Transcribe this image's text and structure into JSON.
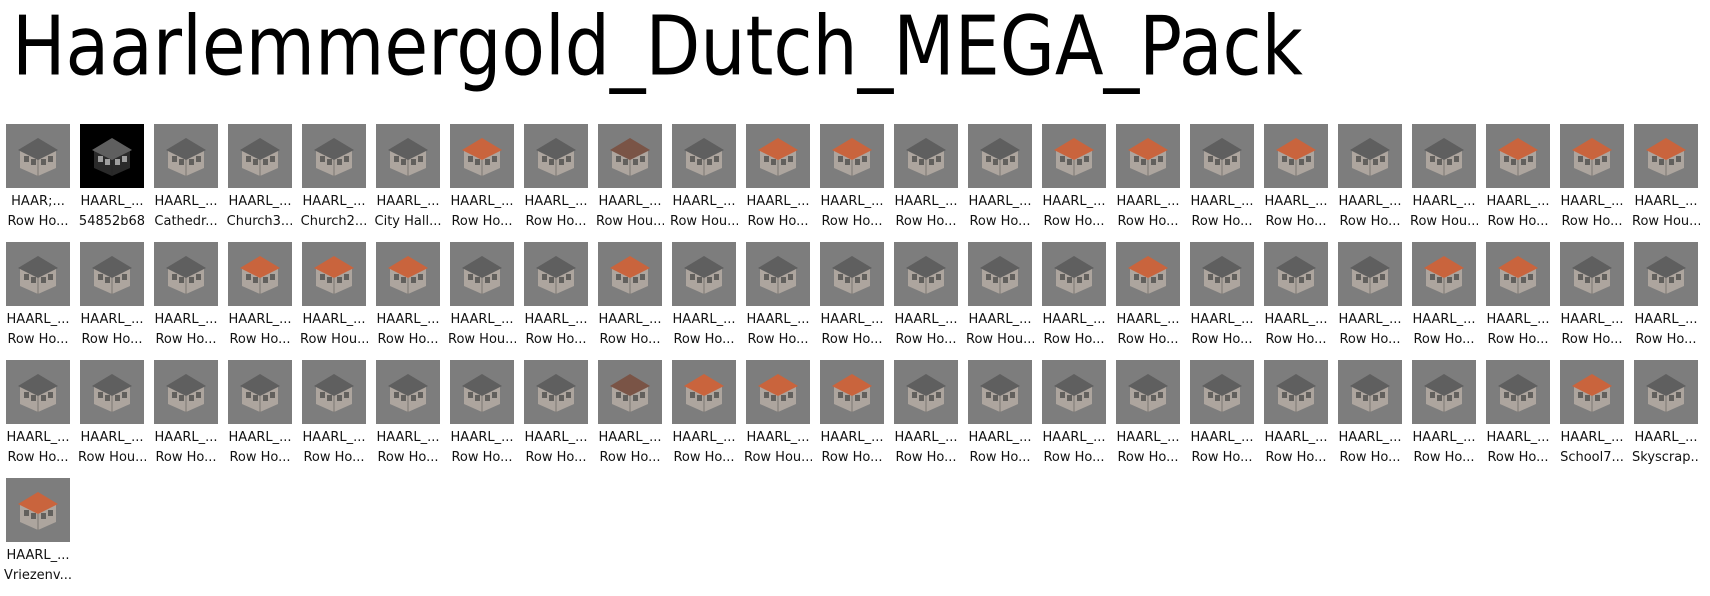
{
  "title": "Haarlemmergold_Dutch_MEGA_Pack",
  "items": [
    {
      "line1": "HAAR;...",
      "line2": "Row Ho...",
      "style": "black0"
    },
    {
      "line1": "HAARL_...",
      "line2": "54852b68",
      "style": "dark"
    },
    {
      "line1": "HAARL_...",
      "line2": "Cathedr...",
      "style": "grey"
    },
    {
      "line1": "HAARL_...",
      "line2": "Church3...",
      "style": "grey"
    },
    {
      "line1": "HAARL_...",
      "line2": "Church2...",
      "style": "grey"
    },
    {
      "line1": "HAARL_...",
      "line2": "City Hall...",
      "style": "grey"
    },
    {
      "line1": "HAARL_...",
      "line2": "Row Ho...",
      "style": "orange"
    },
    {
      "line1": "HAARL_...",
      "line2": "Row Ho...",
      "style": "grey"
    },
    {
      "line1": "HAARL_...",
      "line2": "Row Hou...",
      "style": "brown"
    },
    {
      "line1": "HAARL_...",
      "line2": "Row Hou...",
      "style": "grey"
    },
    {
      "line1": "HAARL_...",
      "line2": "Row Ho...",
      "style": "orange"
    },
    {
      "line1": "HAARL_...",
      "line2": "Row Ho...",
      "style": "orange"
    },
    {
      "line1": "HAARL_...",
      "line2": "Row Ho...",
      "style": "grey"
    },
    {
      "line1": "HAARL_...",
      "line2": "Row Ho...",
      "style": "grey"
    },
    {
      "line1": "HAARL_...",
      "line2": "Row Ho...",
      "style": "orange"
    },
    {
      "line1": "HAARL_...",
      "line2": "Row Ho...",
      "style": "orange"
    },
    {
      "line1": "HAARL_...",
      "line2": "Row Ho...",
      "style": "grey"
    },
    {
      "line1": "HAARL_...",
      "line2": "Row Ho...",
      "style": "orange"
    },
    {
      "line1": "HAARL_...",
      "line2": "Row Ho...",
      "style": "grey"
    },
    {
      "line1": "HAARL_...",
      "line2": "Row Hou...",
      "style": "grey"
    },
    {
      "line1": "HAARL_...",
      "line2": "Row Ho...",
      "style": "orange"
    },
    {
      "line1": "HAARL_...",
      "line2": "Row Ho...",
      "style": "orange"
    },
    {
      "line1": "HAARL_...",
      "line2": "Row Hou...",
      "style": "orange"
    },
    {
      "line1": "HAARL_...",
      "line2": "Row Ho...",
      "style": "grey"
    },
    {
      "line1": "HAARL_...",
      "line2": "Row Ho...",
      "style": "grey"
    },
    {
      "line1": "HAARL_...",
      "line2": "Row Ho...",
      "style": "grey"
    },
    {
      "line1": "HAARL_...",
      "line2": "Row Ho...",
      "style": "orange"
    },
    {
      "line1": "HAARL_...",
      "line2": "Row Hou...",
      "style": "orange"
    },
    {
      "line1": "HAARL_...",
      "line2": "Row Ho...",
      "style": "orange"
    },
    {
      "line1": "HAARL_...",
      "line2": "Row Hou...",
      "style": "grey"
    },
    {
      "line1": "HAARL_...",
      "line2": "Row Ho...",
      "style": "grey"
    },
    {
      "line1": "HAARL_...",
      "line2": "Row Ho...",
      "style": "orange"
    },
    {
      "line1": "HAARL_...",
      "line2": "Row Ho...",
      "style": "grey"
    },
    {
      "line1": "HAARL_...",
      "line2": "Row Ho...",
      "style": "grey"
    },
    {
      "line1": "HAARL_...",
      "line2": "Row Ho...",
      "style": "grey"
    },
    {
      "line1": "HAARL_...",
      "line2": "Row Ho...",
      "style": "grey"
    },
    {
      "line1": "HAARL_...",
      "line2": "Row Hou...",
      "style": "grey"
    },
    {
      "line1": "HAARL_...",
      "line2": "Row Ho...",
      "style": "grey"
    },
    {
      "line1": "HAARL_...",
      "line2": "Row Ho...",
      "style": "orange"
    },
    {
      "line1": "HAARL_...",
      "line2": "Row Ho...",
      "style": "grey"
    },
    {
      "line1": "HAARL_...",
      "line2": "Row Ho...",
      "style": "grey"
    },
    {
      "line1": "HAARL_...",
      "line2": "Row Ho...",
      "style": "grey"
    },
    {
      "line1": "HAARL_...",
      "line2": "Row Ho...",
      "style": "orange"
    },
    {
      "line1": "HAARL_...",
      "line2": "Row Ho...",
      "style": "orange"
    },
    {
      "line1": "HAARL_...",
      "line2": "Row Ho...",
      "style": "grey"
    },
    {
      "line1": "HAARL_...",
      "line2": "Row Ho...",
      "style": "grey"
    },
    {
      "line1": "HAARL_...",
      "line2": "Row Ho...",
      "style": "grey"
    },
    {
      "line1": "HAARL_...",
      "line2": "Row Hou...",
      "style": "grey"
    },
    {
      "line1": "HAARL_...",
      "line2": "Row Ho...",
      "style": "grey"
    },
    {
      "line1": "HAARL_...",
      "line2": "Row Ho...",
      "style": "grey"
    },
    {
      "line1": "HAARL_...",
      "line2": "Row Ho...",
      "style": "grey"
    },
    {
      "line1": "HAARL_...",
      "line2": "Row Ho...",
      "style": "grey"
    },
    {
      "line1": "HAARL_...",
      "line2": "Row Ho...",
      "style": "grey"
    },
    {
      "line1": "HAARL_...",
      "line2": "Row Ho...",
      "style": "grey"
    },
    {
      "line1": "HAARL_...",
      "line2": "Row Ho...",
      "style": "brown"
    },
    {
      "line1": "HAARL_...",
      "line2": "Row Ho...",
      "style": "orange"
    },
    {
      "line1": "HAARL_...",
      "line2": "Row Hou...",
      "style": "orange"
    },
    {
      "line1": "HAARL_...",
      "line2": "Row Ho...",
      "style": "orange"
    },
    {
      "line1": "HAARL_...",
      "line2": "Row Ho...",
      "style": "grey"
    },
    {
      "line1": "HAARL_...",
      "line2": "Row Ho...",
      "style": "grey"
    },
    {
      "line1": "HAARL_...",
      "line2": "Row Ho...",
      "style": "grey"
    },
    {
      "line1": "HAARL_...",
      "line2": "Row Ho...",
      "style": "grey"
    },
    {
      "line1": "HAARL_...",
      "line2": "Row Ho...",
      "style": "grey"
    },
    {
      "line1": "HAARL_...",
      "line2": "Row Ho...",
      "style": "grey"
    },
    {
      "line1": "HAARL_...",
      "line2": "Row Ho...",
      "style": "grey"
    },
    {
      "line1": "HAARL_...",
      "line2": "Row Ho...",
      "style": "grey"
    },
    {
      "line1": "HAARL_...",
      "line2": "Row Ho...",
      "style": "grey"
    },
    {
      "line1": "HAARL_...",
      "line2": "School7...",
      "style": "orange"
    },
    {
      "line1": "HAARL_...",
      "line2": "Skyscrap...",
      "style": "grey"
    },
    {
      "line1": "HAARL_...",
      "line2": "Vriezenv...",
      "style": "orange"
    }
  ]
}
